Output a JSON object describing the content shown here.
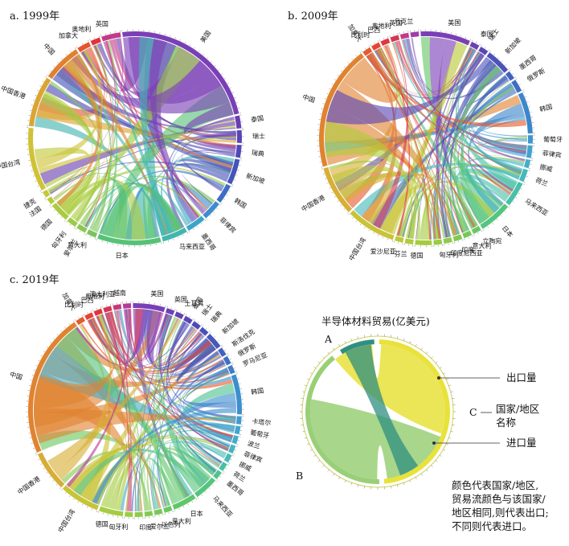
{
  "chart_data": [
    {
      "type": "chord",
      "title": "a. 1999年",
      "nodes": [
        {
          "name": "美国",
          "color": "#7a3fb6"
        },
        {
          "name": "泰国",
          "color": "#6a3fb0"
        },
        {
          "name": "瑞士",
          "color": "#5a43b2"
        },
        {
          "name": "瑞典",
          "color": "#5048b5"
        },
        {
          "name": "新加坡",
          "color": "#4454b8"
        },
        {
          "name": "韩国",
          "color": "#3b6ec4"
        },
        {
          "name": "菲律宾",
          "color": "#3f8ccc"
        },
        {
          "name": "墨西哥",
          "color": "#3aa5c8"
        },
        {
          "name": "马来西亚",
          "color": "#42b5b0"
        },
        {
          "name": "日本",
          "color": "#57c277"
        },
        {
          "name": "意大利",
          "color": "#7ac45a"
        },
        {
          "name": "爱尔兰",
          "color": "#8bc850"
        },
        {
          "name": "匈牙利",
          "color": "#9ccc46"
        },
        {
          "name": "德国",
          "color": "#a9cc3e"
        },
        {
          "name": "法国",
          "color": "#b5cc3a"
        },
        {
          "name": "捷克",
          "color": "#c2c837"
        },
        {
          "name": "中国台湾",
          "color": "#cfc236"
        },
        {
          "name": "中国香港",
          "color": "#dba533"
        },
        {
          "name": "中国",
          "color": "#e0812f"
        },
        {
          "name": "加拿大",
          "color": "#e5562e"
        },
        {
          "name": "奥地利",
          "color": "#e0343c"
        },
        {
          "name": "英国",
          "color": "#c23a8a"
        }
      ]
    },
    {
      "type": "chord",
      "title": "b. 2009年",
      "nodes": [
        {
          "name": "美国",
          "color": "#7a3fb6"
        },
        {
          "name": "泰国",
          "color": "#6a42b4"
        },
        {
          "name": "瑞士",
          "color": "#5b46b6"
        },
        {
          "name": "新加坡",
          "color": "#4d52ba"
        },
        {
          "name": "墨西哥",
          "color": "#4460be"
        },
        {
          "name": "俄罗斯",
          "color": "#3d6ec4"
        },
        {
          "name": "韩国",
          "color": "#3b86cc"
        },
        {
          "name": "葡萄牙",
          "color": "#3e96cf"
        },
        {
          "name": "菲律宾",
          "color": "#42a3cf"
        },
        {
          "name": "挪威",
          "color": "#43afc6"
        },
        {
          "name": "荷兰",
          "color": "#44b9bb"
        },
        {
          "name": "马来西亚",
          "color": "#49c0a7"
        },
        {
          "name": "日本",
          "color": "#54c57e"
        },
        {
          "name": "立陶宛",
          "color": "#66c765"
        },
        {
          "name": "意大利",
          "color": "#74c85a"
        },
        {
          "name": "印度",
          "color": "#81c953"
        },
        {
          "name": "印度尼西亚",
          "color": "#8dcb4c"
        },
        {
          "name": "匈牙利",
          "color": "#98cc46"
        },
        {
          "name": "德国",
          "color": "#a4cc40"
        },
        {
          "name": "芬兰",
          "color": "#b0cb3b"
        },
        {
          "name": "爱沙尼亚",
          "color": "#bcc838"
        },
        {
          "name": "中国台湾",
          "color": "#c9c337"
        },
        {
          "name": "中国香港",
          "color": "#d8ae35"
        },
        {
          "name": "中国",
          "color": "#e08330"
        },
        {
          "name": "加拿大",
          "color": "#e55a2e"
        },
        {
          "name": "比利时",
          "color": "#e44532"
        },
        {
          "name": "巴西",
          "color": "#e0353d"
        },
        {
          "name": "奥地利",
          "color": "#d43754"
        },
        {
          "name": "英国",
          "color": "#c23a8a"
        },
        {
          "name": "乌克兰",
          "color": "#a33cab"
        }
      ]
    },
    {
      "type": "chord",
      "title": "c. 2019年",
      "nodes": [
        {
          "name": "美国",
          "color": "#7a3fb6"
        },
        {
          "name": "英国",
          "color": "#6f40b4"
        },
        {
          "name": "土耳其",
          "color": "#6442b4"
        },
        {
          "name": "泰国",
          "color": "#5946b6"
        },
        {
          "name": "瑞士",
          "color": "#5149b8"
        },
        {
          "name": "瑞典",
          "color": "#4a50ba"
        },
        {
          "name": "新加坡",
          "color": "#4558bc"
        },
        {
          "name": "斯洛伐克",
          "color": "#4162c0"
        },
        {
          "name": "俄罗斯",
          "color": "#3d70c5"
        },
        {
          "name": "罗马尼亚",
          "color": "#3b7ec9"
        },
        {
          "name": "韩国",
          "color": "#3b8fcd"
        },
        {
          "name": "卡塔尔",
          "color": "#3e9bcf"
        },
        {
          "name": "葡萄牙",
          "color": "#41a5cf"
        },
        {
          "name": "波兰",
          "color": "#43adca"
        },
        {
          "name": "菲律宾",
          "color": "#44b5c1"
        },
        {
          "name": "挪威",
          "color": "#46bcb5"
        },
        {
          "name": "荷兰",
          "color": "#49c0a5"
        },
        {
          "name": "墨西哥",
          "color": "#4ec291"
        },
        {
          "name": "马来西亚",
          "color": "#55c47d"
        },
        {
          "name": "日本",
          "color": "#60c66b"
        },
        {
          "name": "意大利",
          "color": "#6cc760"
        },
        {
          "name": "以色列",
          "color": "#78c858"
        },
        {
          "name": "爱尔兰",
          "color": "#83ca52"
        },
        {
          "name": "印度",
          "color": "#8ecb4c"
        },
        {
          "name": "匈牙利",
          "color": "#99cc46"
        },
        {
          "name": "德国",
          "color": "#a6cc40"
        },
        {
          "name": "中国台湾",
          "color": "#c8c337"
        },
        {
          "name": "中国香港",
          "color": "#d6ae35"
        },
        {
          "name": "中国",
          "color": "#e08330"
        },
        {
          "name": "加拿大",
          "color": "#e55a2e"
        },
        {
          "name": "比利时",
          "color": "#e44532"
        },
        {
          "name": "巴西",
          "color": "#e0353d"
        },
        {
          "name": "奥地利",
          "color": "#d43754"
        },
        {
          "name": "澳大利亚",
          "color": "#c5397a"
        },
        {
          "name": "越南",
          "color": "#b23b9b"
        }
      ]
    }
  ],
  "legend": {
    "title": "半导体材料贸易(亿美元)",
    "marker_a": "A",
    "marker_b": "B",
    "marker_c": "C",
    "export_label": "出口量",
    "c_label_line1": "国家/地区",
    "c_label_line2": "名称",
    "import_label": "进口量",
    "note_line1": "颜色代表国家/地区,",
    "note_line2": "贸易流颜色与该国家/",
    "note_line3": "地区相同,则代表出口;",
    "note_line4": "不同则代表进口。",
    "colors": {
      "teal": "#2f8f80",
      "yellow": "#e8e23a",
      "green": "#99cf77"
    }
  }
}
